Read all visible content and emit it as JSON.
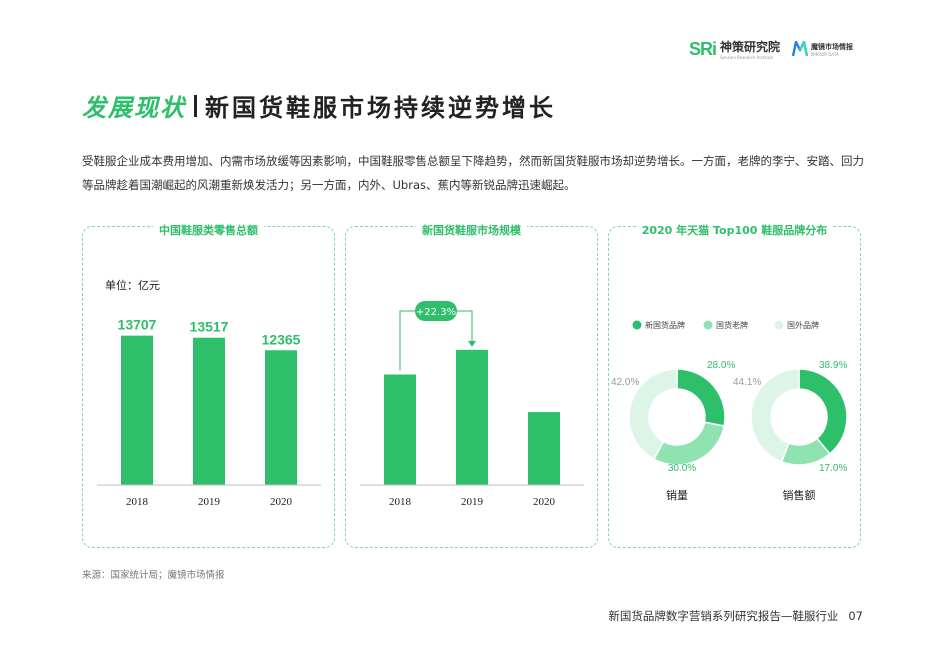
{
  "logos": {
    "sri_mark": "SRi",
    "sri_name": "神策研究院",
    "sri_sub": "Sensors Research Institute",
    "m_name": "魔镜市场情报",
    "m_sub": "MIRROR DATA"
  },
  "heading": {
    "green": "发展现状",
    "dark": "新国货鞋服市场持续逆势增长"
  },
  "intro": "受鞋服企业成本费用增加、内需市场放缓等因素影响，中国鞋服零售总额呈下降趋势，然而新国货鞋服市场却逆势增长。一方面，老牌的李宁、安踏、回力等品牌趁着国潮崛起的风潮重新焕发活力；另一方面，内外、Ubras、蕉内等新锐品牌迅速崛起。",
  "panels": {
    "retail_title": "中国鞋服类零售总额",
    "unit": "单位：亿元",
    "market_title": "新国货鞋服市场规模",
    "tmall_title": "2020 年天猫 Top100 鞋服品牌分布"
  },
  "chart_data": [
    {
      "type": "bar",
      "title": "中国鞋服类零售总额",
      "ylabel": "单位：亿元",
      "categories": [
        "2018",
        "2019",
        "2020"
      ],
      "values": [
        13707,
        13517,
        12365
      ],
      "value_labels": [
        "13707",
        "13517",
        "12365"
      ],
      "ylim": [
        0,
        14500
      ],
      "color": "#2dbf6a"
    },
    {
      "type": "bar",
      "title": "新国货鞋服市场规模",
      "categories": [
        "2018",
        "2019",
        "2020"
      ],
      "values": [
        100,
        122.3,
        66
      ],
      "annotation": "+22.3%",
      "ylim": [
        0,
        143
      ],
      "color": "#2dbf6a"
    },
    {
      "type": "pie",
      "title": "2020 年天猫 Top100 鞋服品牌分布",
      "legend": [
        "新国货品牌",
        "国货老牌",
        "国外品牌"
      ],
      "legend_position": "top",
      "colors": [
        "#2dbf6a",
        "#8fe3b0",
        "#ddf5e6"
      ],
      "charts": [
        {
          "name": "销量",
          "values": [
            28.0,
            30.0,
            42.0
          ],
          "labels": [
            "28.0%",
            "30.0%",
            "42.0%"
          ]
        },
        {
          "name": "销售额",
          "values": [
            38.9,
            17.0,
            44.1
          ],
          "labels": [
            "38.9%",
            "17.0%",
            "44.1%"
          ]
        }
      ]
    }
  ],
  "source": "来源：国家统计局；魔镜市场情报",
  "footer": {
    "text": "新国货品牌数字营销系列研究报告—鞋服行业",
    "page": "07"
  }
}
